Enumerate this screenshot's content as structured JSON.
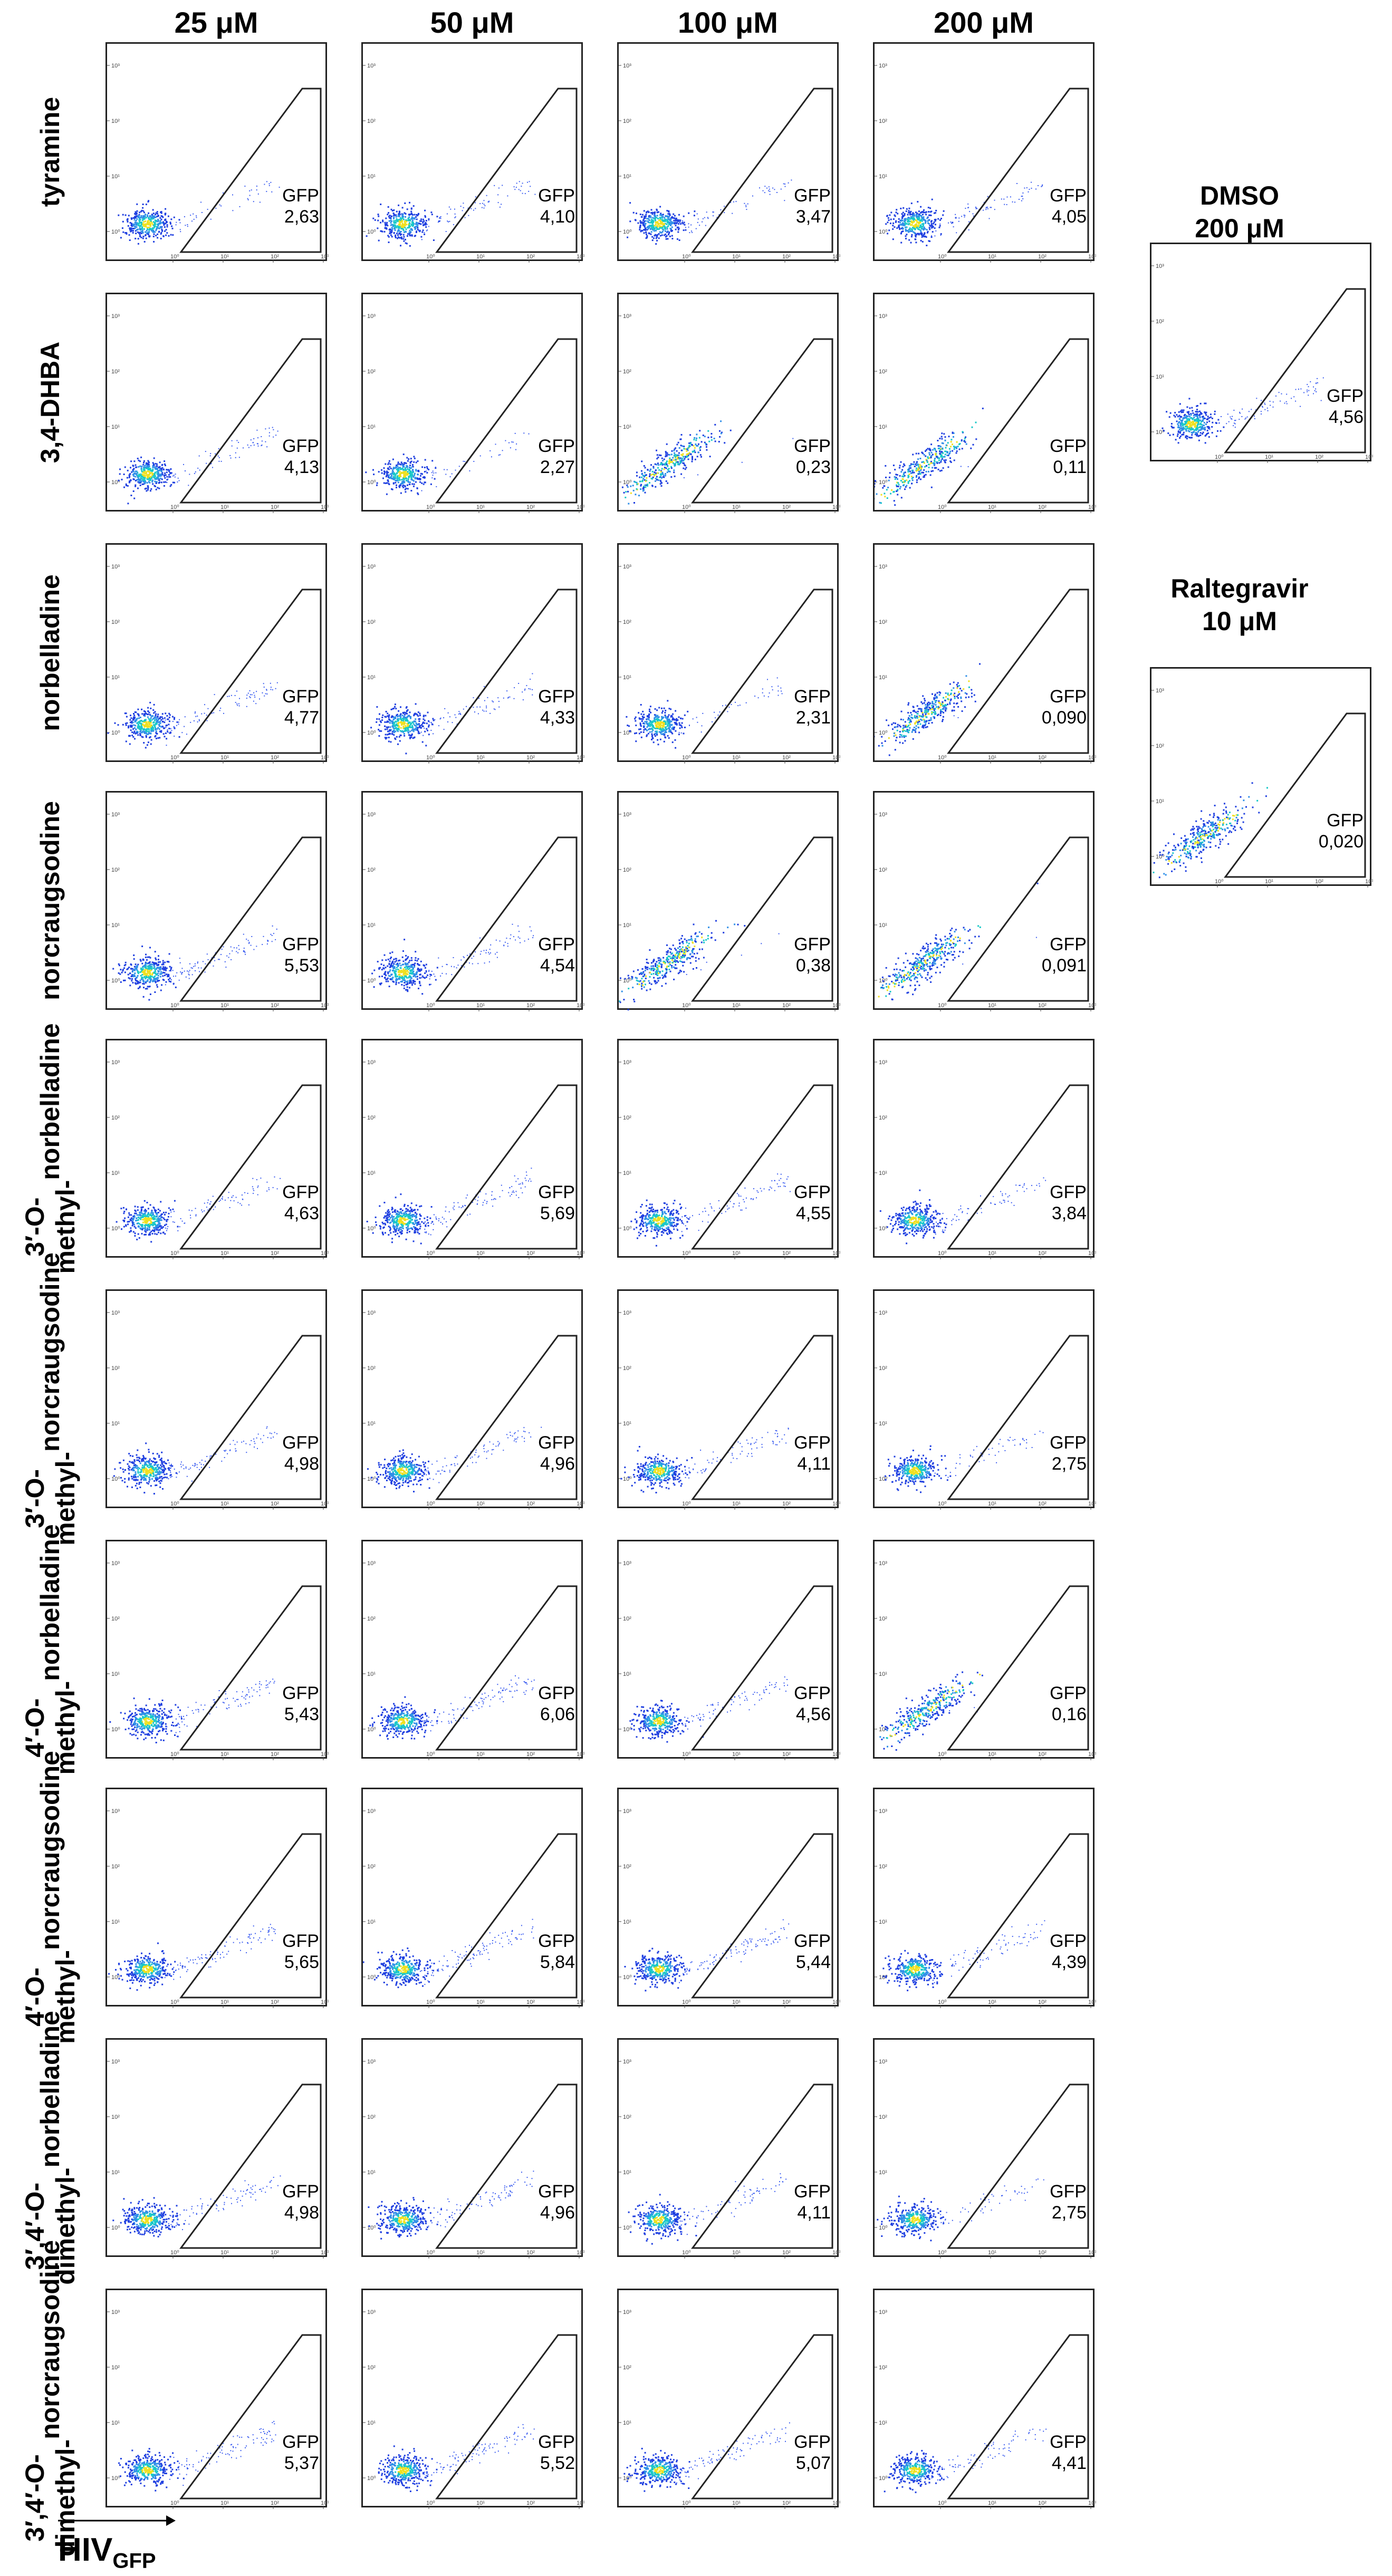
{
  "chart_data": {
    "type": "scatter",
    "columns": [
      "25 μM",
      "50 μM",
      "100 μM",
      "200 μM"
    ],
    "rows": [
      {
        "label": [
          "tyramine"
        ],
        "gfp": [
          "2,63",
          "4,10",
          "3,47",
          "4,05"
        ]
      },
      {
        "label": [
          "3,4-DHBA"
        ],
        "gfp": [
          "4,13",
          "2,27",
          "0,23",
          "0,11"
        ]
      },
      {
        "label": [
          "norbelladine"
        ],
        "gfp": [
          "4,77",
          "4,33",
          "2,31",
          "0,090"
        ]
      },
      {
        "label": [
          "norcraugsodine"
        ],
        "gfp": [
          "5,53",
          "4,54",
          "0,38",
          "0,091"
        ]
      },
      {
        "label": [
          "3′-O-methyl-",
          "norbelladine"
        ],
        "gfp": [
          "4,63",
          "5,69",
          "4,55",
          "3,84"
        ]
      },
      {
        "label": [
          "3′-O-methyl-",
          "norcraugsodine"
        ],
        "gfp": [
          "4,98",
          "4,96",
          "4,11",
          "2,75"
        ]
      },
      {
        "label": [
          "4′-O-methyl-",
          "norbelladine"
        ],
        "gfp": [
          "5,43",
          "6,06",
          "4,56",
          "0,16"
        ]
      },
      {
        "label": [
          "4′-O-methyl-",
          "norcraugsodine"
        ],
        "gfp": [
          "5,65",
          "5,84",
          "5,44",
          "4,39"
        ]
      },
      {
        "label": [
          "3′,4′-O-dimethyl-",
          "norbelladine"
        ],
        "gfp": [
          "4,98",
          "4,96",
          "4,11",
          "2,75"
        ]
      },
      {
        "label": [
          "3′,4′-O-dimethyl-",
          "norcraugsodine"
        ],
        "gfp": [
          "5,37",
          "5,52",
          "5,07",
          "4,41"
        ]
      }
    ],
    "controls": [
      {
        "title": [
          "DMSO",
          "200 μM"
        ],
        "gfp": "4,56"
      },
      {
        "title": [
          "Raltegravir",
          "10 μM"
        ],
        "gfp": "0,020"
      }
    ],
    "gate_label": "GFP",
    "axis_label": {
      "main": "HIV",
      "sub": "GFP"
    },
    "tick_labels": [
      "10⁰",
      "10¹",
      "10²",
      "10³"
    ],
    "colors": {
      "density_low": "#1f3fe0",
      "density_mid": "#19c8c8",
      "density_high": "#f0e020",
      "gate": "#222222"
    }
  }
}
